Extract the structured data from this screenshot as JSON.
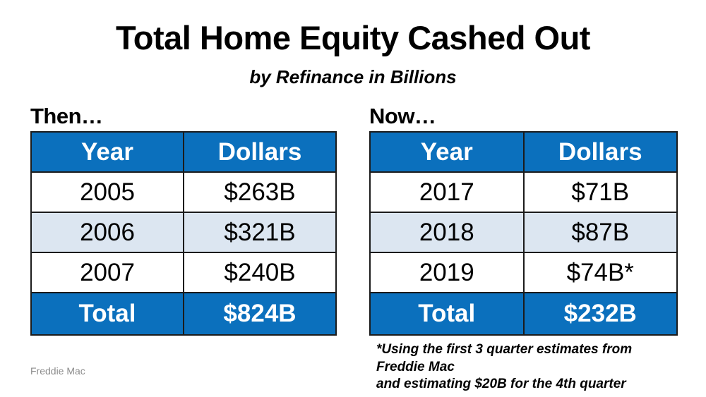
{
  "title": "Total Home Equity Cashed Out",
  "subtitle": "by Refinance in Billions",
  "source": "Freddie Mac",
  "colors": {
    "header_blue": "#0b70bd",
    "alt_row_blue": "#dce6f1",
    "border_dark": "#1b1b1b",
    "text_white": "#ffffff",
    "source_gray": "#8c8c8c"
  },
  "tables": [
    {
      "label": "Then…",
      "headers": [
        "Year",
        "Dollars"
      ],
      "rows": [
        [
          "2005",
          "$263B"
        ],
        [
          "2006",
          "$321B"
        ],
        [
          "2007",
          "$240B"
        ]
      ],
      "total": [
        "Total",
        "$824B"
      ]
    },
    {
      "label": "Now…",
      "headers": [
        "Year",
        "Dollars"
      ],
      "rows": [
        [
          "2017",
          "$71B"
        ],
        [
          "2018",
          "$87B"
        ],
        [
          "2019",
          "$74B*"
        ]
      ],
      "total": [
        "Total",
        "$232B"
      ],
      "footnote_lines": [
        "*Using the first 3 quarter estimates from Freddie Mac",
        "and estimating $20B for the 4th quarter"
      ]
    }
  ],
  "chart_data": [
    {
      "type": "table",
      "title": "Then…",
      "columns": [
        "Year",
        "Dollars"
      ],
      "rows": [
        [
          "2005",
          "$263B"
        ],
        [
          "2006",
          "$321B"
        ],
        [
          "2007",
          "$240B"
        ],
        [
          "Total",
          "$824B"
        ]
      ],
      "units": "billions of dollars cashed out by refinance"
    },
    {
      "type": "table",
      "title": "Now…",
      "columns": [
        "Year",
        "Dollars"
      ],
      "rows": [
        [
          "2017",
          "$71B"
        ],
        [
          "2018",
          "$87B"
        ],
        [
          "2019",
          "$74B*"
        ],
        [
          "Total",
          "$232B"
        ]
      ],
      "footnote": "*Using the first 3 quarter estimates from Freddie Mac and estimating $20B for the 4th quarter",
      "units": "billions of dollars cashed out by refinance"
    }
  ]
}
